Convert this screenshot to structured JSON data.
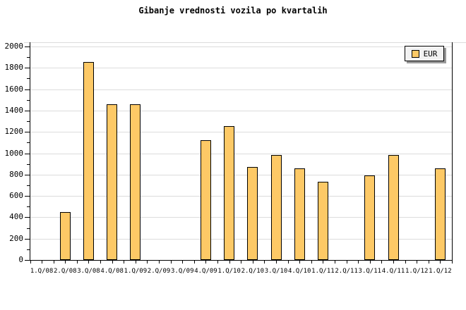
{
  "title": "Gibanje vrednosti vozila po kvartalih",
  "legend": {
    "label": "EUR"
  },
  "y_axis": {
    "tick_labels": [
      "0",
      "200",
      "400",
      "600",
      "800",
      "1000",
      "1200",
      "1400",
      "1600",
      "1800",
      "2000"
    ]
  },
  "colors": {
    "background": "#FFFFFF",
    "bar_fill": "#FDC966",
    "bar_border": "#000000",
    "grid": "#DCDCDC",
    "axis": "#000000",
    "legend_bg": "#F2F2F2",
    "legend_shadow": "#999999"
  },
  "chart_data": {
    "type": "bar",
    "title": "Gibanje vrednosti vozila po kvartalih",
    "categories": [
      "1.Q/08",
      "2.Q/08",
      "3.Q/08",
      "4.Q/08",
      "1.Q/09",
      "2.Q/09",
      "3.Q/09",
      "4.Q/09",
      "1.Q/10",
      "2.Q/10",
      "3.Q/10",
      "4.Q/10",
      "1.Q/11",
      "2.Q/11",
      "3.Q/11",
      "4.Q/11",
      "1.Q/12",
      "1.Q/12"
    ],
    "series": [
      {
        "name": "EUR",
        "values": [
          null,
          450,
          1855,
          1460,
          1460,
          null,
          null,
          1125,
          1255,
          870,
          985,
          860,
          730,
          null,
          795,
          985,
          null,
          860
        ]
      }
    ],
    "xlabel": "",
    "ylabel": "",
    "ylim": [
      0,
      2000
    ],
    "ytick_major": 200,
    "ytick_minor": 100,
    "grid": "horizontal-major",
    "legend_position": "top-right"
  }
}
